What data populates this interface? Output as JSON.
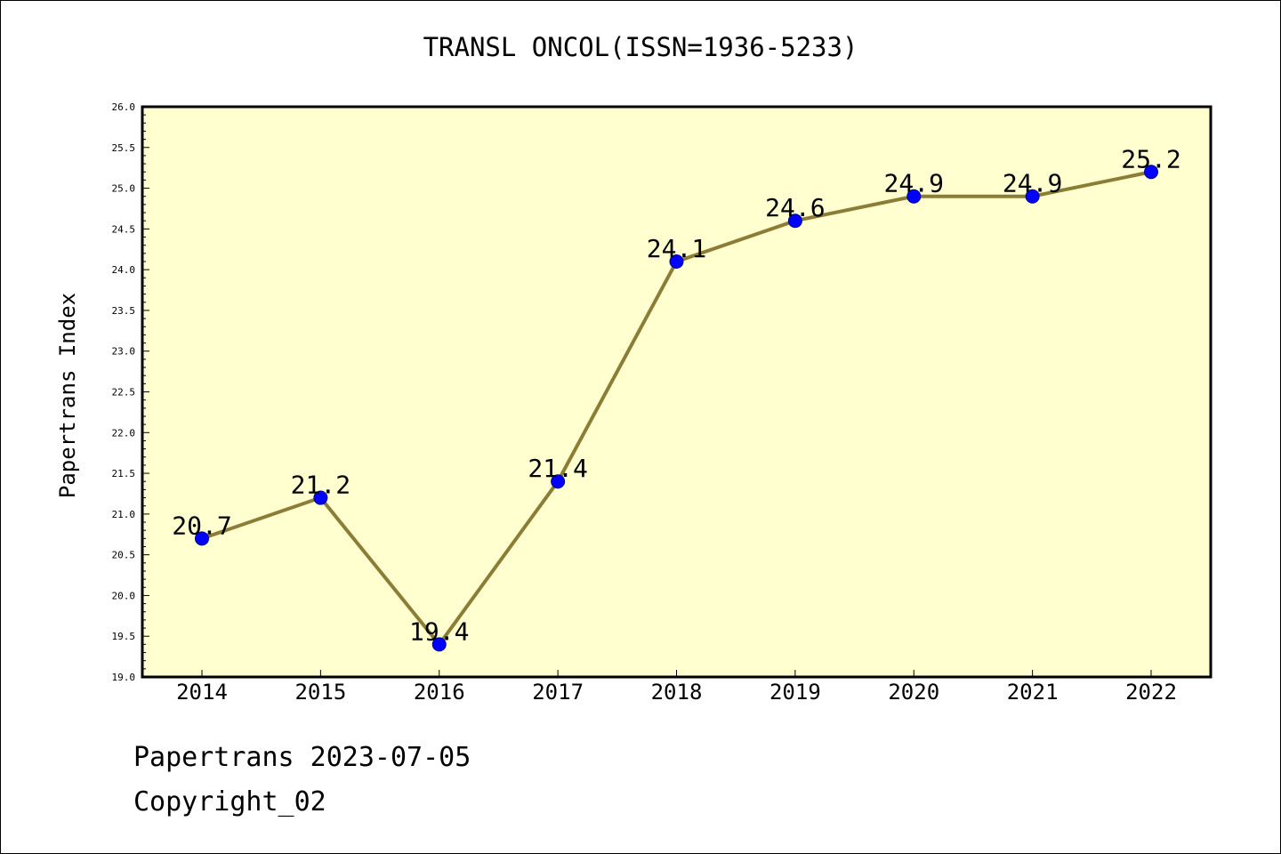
{
  "chart_data": {
    "type": "line",
    "title": "TRANSL ONCOL(ISSN=1936-5233)",
    "xlabel": "",
    "ylabel": "Papertrans Index",
    "categories": [
      "2014",
      "2015",
      "2016",
      "2017",
      "2018",
      "2019",
      "2020",
      "2021",
      "2022"
    ],
    "series": [
      {
        "values": [
          20.7,
          21.2,
          19.4,
          21.4,
          24.1,
          24.6,
          24.9,
          24.9,
          25.2
        ],
        "data_labels": [
          "20.7",
          "21.2",
          "19.4",
          "21.4",
          "24.1",
          "24.6",
          "24.9",
          "24.9",
          "25.2"
        ]
      }
    ],
    "ylim": [
      19.0,
      26.0
    ],
    "yticks": [
      "19.0",
      "19.5",
      "20.0",
      "20.5",
      "21.0",
      "21.5",
      "22.0",
      "22.5",
      "23.0",
      "23.5",
      "24.0",
      "24.5",
      "25.0",
      "25.5",
      "26.0"
    ],
    "grid": false,
    "legend": "none",
    "colors": {
      "plot_background": "#ffffd0",
      "line": "#8b7d35",
      "marker": "#0000ff",
      "marker_edge": "#00008b",
      "axes": "#000000"
    }
  },
  "footer": {
    "date_line": "Papertrans 2023-07-05",
    "copyright_line": "Copyright_02"
  }
}
